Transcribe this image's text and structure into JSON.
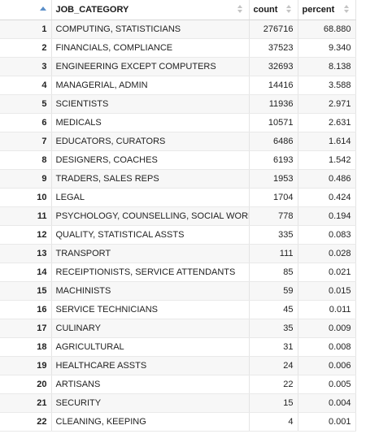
{
  "table": {
    "columns": [
      {
        "key": "index",
        "label": ""
      },
      {
        "key": "job_category",
        "label": "JOB_CATEGORY"
      },
      {
        "key": "count",
        "label": "count"
      },
      {
        "key": "percent",
        "label": "percent"
      }
    ],
    "rows": [
      {
        "index": "1",
        "job_category": "COMPUTING, STATISTICIANS",
        "count": "276716",
        "percent": "68.880"
      },
      {
        "index": "2",
        "job_category": "FINANCIALS, COMPLIANCE",
        "count": "37523",
        "percent": "9.340"
      },
      {
        "index": "3",
        "job_category": "ENGINEERING EXCEPT COMPUTERS",
        "count": "32693",
        "percent": "8.138"
      },
      {
        "index": "4",
        "job_category": "MANAGERIAL, ADMIN",
        "count": "14416",
        "percent": "3.588"
      },
      {
        "index": "5",
        "job_category": "SCIENTISTS",
        "count": "11936",
        "percent": "2.971"
      },
      {
        "index": "6",
        "job_category": "MEDICALS",
        "count": "10571",
        "percent": "2.631"
      },
      {
        "index": "7",
        "job_category": "EDUCATORS, CURATORS",
        "count": "6486",
        "percent": "1.614"
      },
      {
        "index": "8",
        "job_category": "DESIGNERS, COACHES",
        "count": "6193",
        "percent": "1.542"
      },
      {
        "index": "9",
        "job_category": "TRADERS, SALES REPS",
        "count": "1953",
        "percent": "0.486"
      },
      {
        "index": "10",
        "job_category": "LEGAL",
        "count": "1704",
        "percent": "0.424"
      },
      {
        "index": "11",
        "job_category": "PSYCHOLOGY, COUNSELLING, SOCIAL WORKS",
        "count": "778",
        "percent": "0.194"
      },
      {
        "index": "12",
        "job_category": "QUALITY, STATISTICAL ASSTS",
        "count": "335",
        "percent": "0.083"
      },
      {
        "index": "13",
        "job_category": "TRANSPORT",
        "count": "111",
        "percent": "0.028"
      },
      {
        "index": "14",
        "job_category": "RECEIPTIONISTS, SERVICE ATTENDANTS",
        "count": "85",
        "percent": "0.021"
      },
      {
        "index": "15",
        "job_category": "MACHINISTS",
        "count": "59",
        "percent": "0.015"
      },
      {
        "index": "16",
        "job_category": "SERVICE TECHNICIANS",
        "count": "45",
        "percent": "0.011"
      },
      {
        "index": "17",
        "job_category": "CULINARY",
        "count": "35",
        "percent": "0.009"
      },
      {
        "index": "18",
        "job_category": "AGRICULTURAL",
        "count": "31",
        "percent": "0.008"
      },
      {
        "index": "19",
        "job_category": "HEALTHCARE ASSTS",
        "count": "24",
        "percent": "0.006"
      },
      {
        "index": "20",
        "job_category": "ARTISANS",
        "count": "22",
        "percent": "0.005"
      },
      {
        "index": "21",
        "job_category": "SECURITY",
        "count": "15",
        "percent": "0.004"
      },
      {
        "index": "22",
        "job_category": "CLEANING, KEEPING",
        "count": "4",
        "percent": "0.001"
      }
    ]
  },
  "icons": {
    "index_sort": "sort-ascending-icon",
    "column_sort": "sort-both-icon"
  },
  "colors": {
    "active_sort": "#5b8fc9",
    "inactive_sort": "#c4c4c4",
    "stripe": "#f7f7f7"
  }
}
